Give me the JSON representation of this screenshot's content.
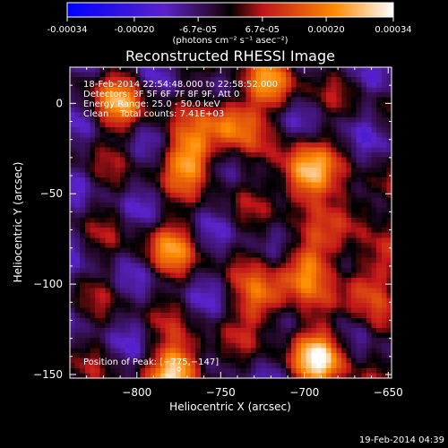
{
  "colorbar": {
    "tick_labels": [
      "-0.00034",
      "-0.00020",
      "-6.7e-05",
      "6.7e-05",
      "0.00020",
      "0.00034"
    ],
    "tick_values": [
      -0.00034,
      -0.0002,
      -6.7e-05,
      6.7e-05,
      0.0002,
      0.00034
    ],
    "range": [
      -0.00034,
      0.00034
    ],
    "unit_label": "(photons cm⁻² s⁻¹ asec⁻²)",
    "colors": [
      "#0000ff",
      "#5a22c9",
      "#2a0a30",
      "#000000",
      "#c0151a",
      "#ff8a00",
      "#ffffff"
    ]
  },
  "chart_data": {
    "type": "heatmap",
    "title": "Reconstructed RHESSI Image",
    "xlabel": "Heliocentric X (arcsec)",
    "ylabel": "Heliocentric Y (arcsec)",
    "xlim": [
      -840,
      -648
    ],
    "ylim": [
      -152,
      20
    ],
    "x_ticks": [
      -800,
      -750,
      -700,
      -650
    ],
    "x_tick_labels": [
      "−800",
      "−750",
      "−700",
      "−650"
    ],
    "y_ticks": [
      0,
      -50,
      -100,
      -150
    ],
    "y_tick_labels": [
      "0",
      "−50",
      "−100",
      "−150"
    ],
    "info_lines": [
      "18-Feb-2014 22:54:48.000 to 22:58:52.000",
      "Detectors: 3F 5F 6F 7F 8F 9F, Att 0",
      "Energy Range: 25.0 - 50.0 keV",
      "Clean    Total counts: 7.41E+03"
    ],
    "peak_label": "Position of Peak: [−775,−147]",
    "peak": [
      -775,
      -147
    ],
    "peak_value": 0.00034,
    "approx_sources": [
      {
        "x": -700,
        "y": -40,
        "strength": 1.0
      },
      {
        "x": -690,
        "y": -140,
        "strength": 0.98
      },
      {
        "x": -775,
        "y": -147,
        "strength": 1.0
      },
      {
        "x": -768,
        "y": -30,
        "strength": 0.85
      },
      {
        "x": -745,
        "y": -10,
        "strength": 0.7
      },
      {
        "x": -700,
        "y": -90,
        "strength": 0.72
      },
      {
        "x": -725,
        "y": -110,
        "strength": 0.65
      },
      {
        "x": -665,
        "y": -100,
        "strength": 0.6
      },
      {
        "x": -810,
        "y": 0,
        "strength": 0.62
      },
      {
        "x": -780,
        "y": -80,
        "strength": 0.55
      },
      {
        "x": -720,
        "y": 10,
        "strength": 0.6
      },
      {
        "x": -670,
        "y": -60,
        "strength": 0.45
      }
    ]
  },
  "timestamp": "19-Feb-2014 04:39"
}
